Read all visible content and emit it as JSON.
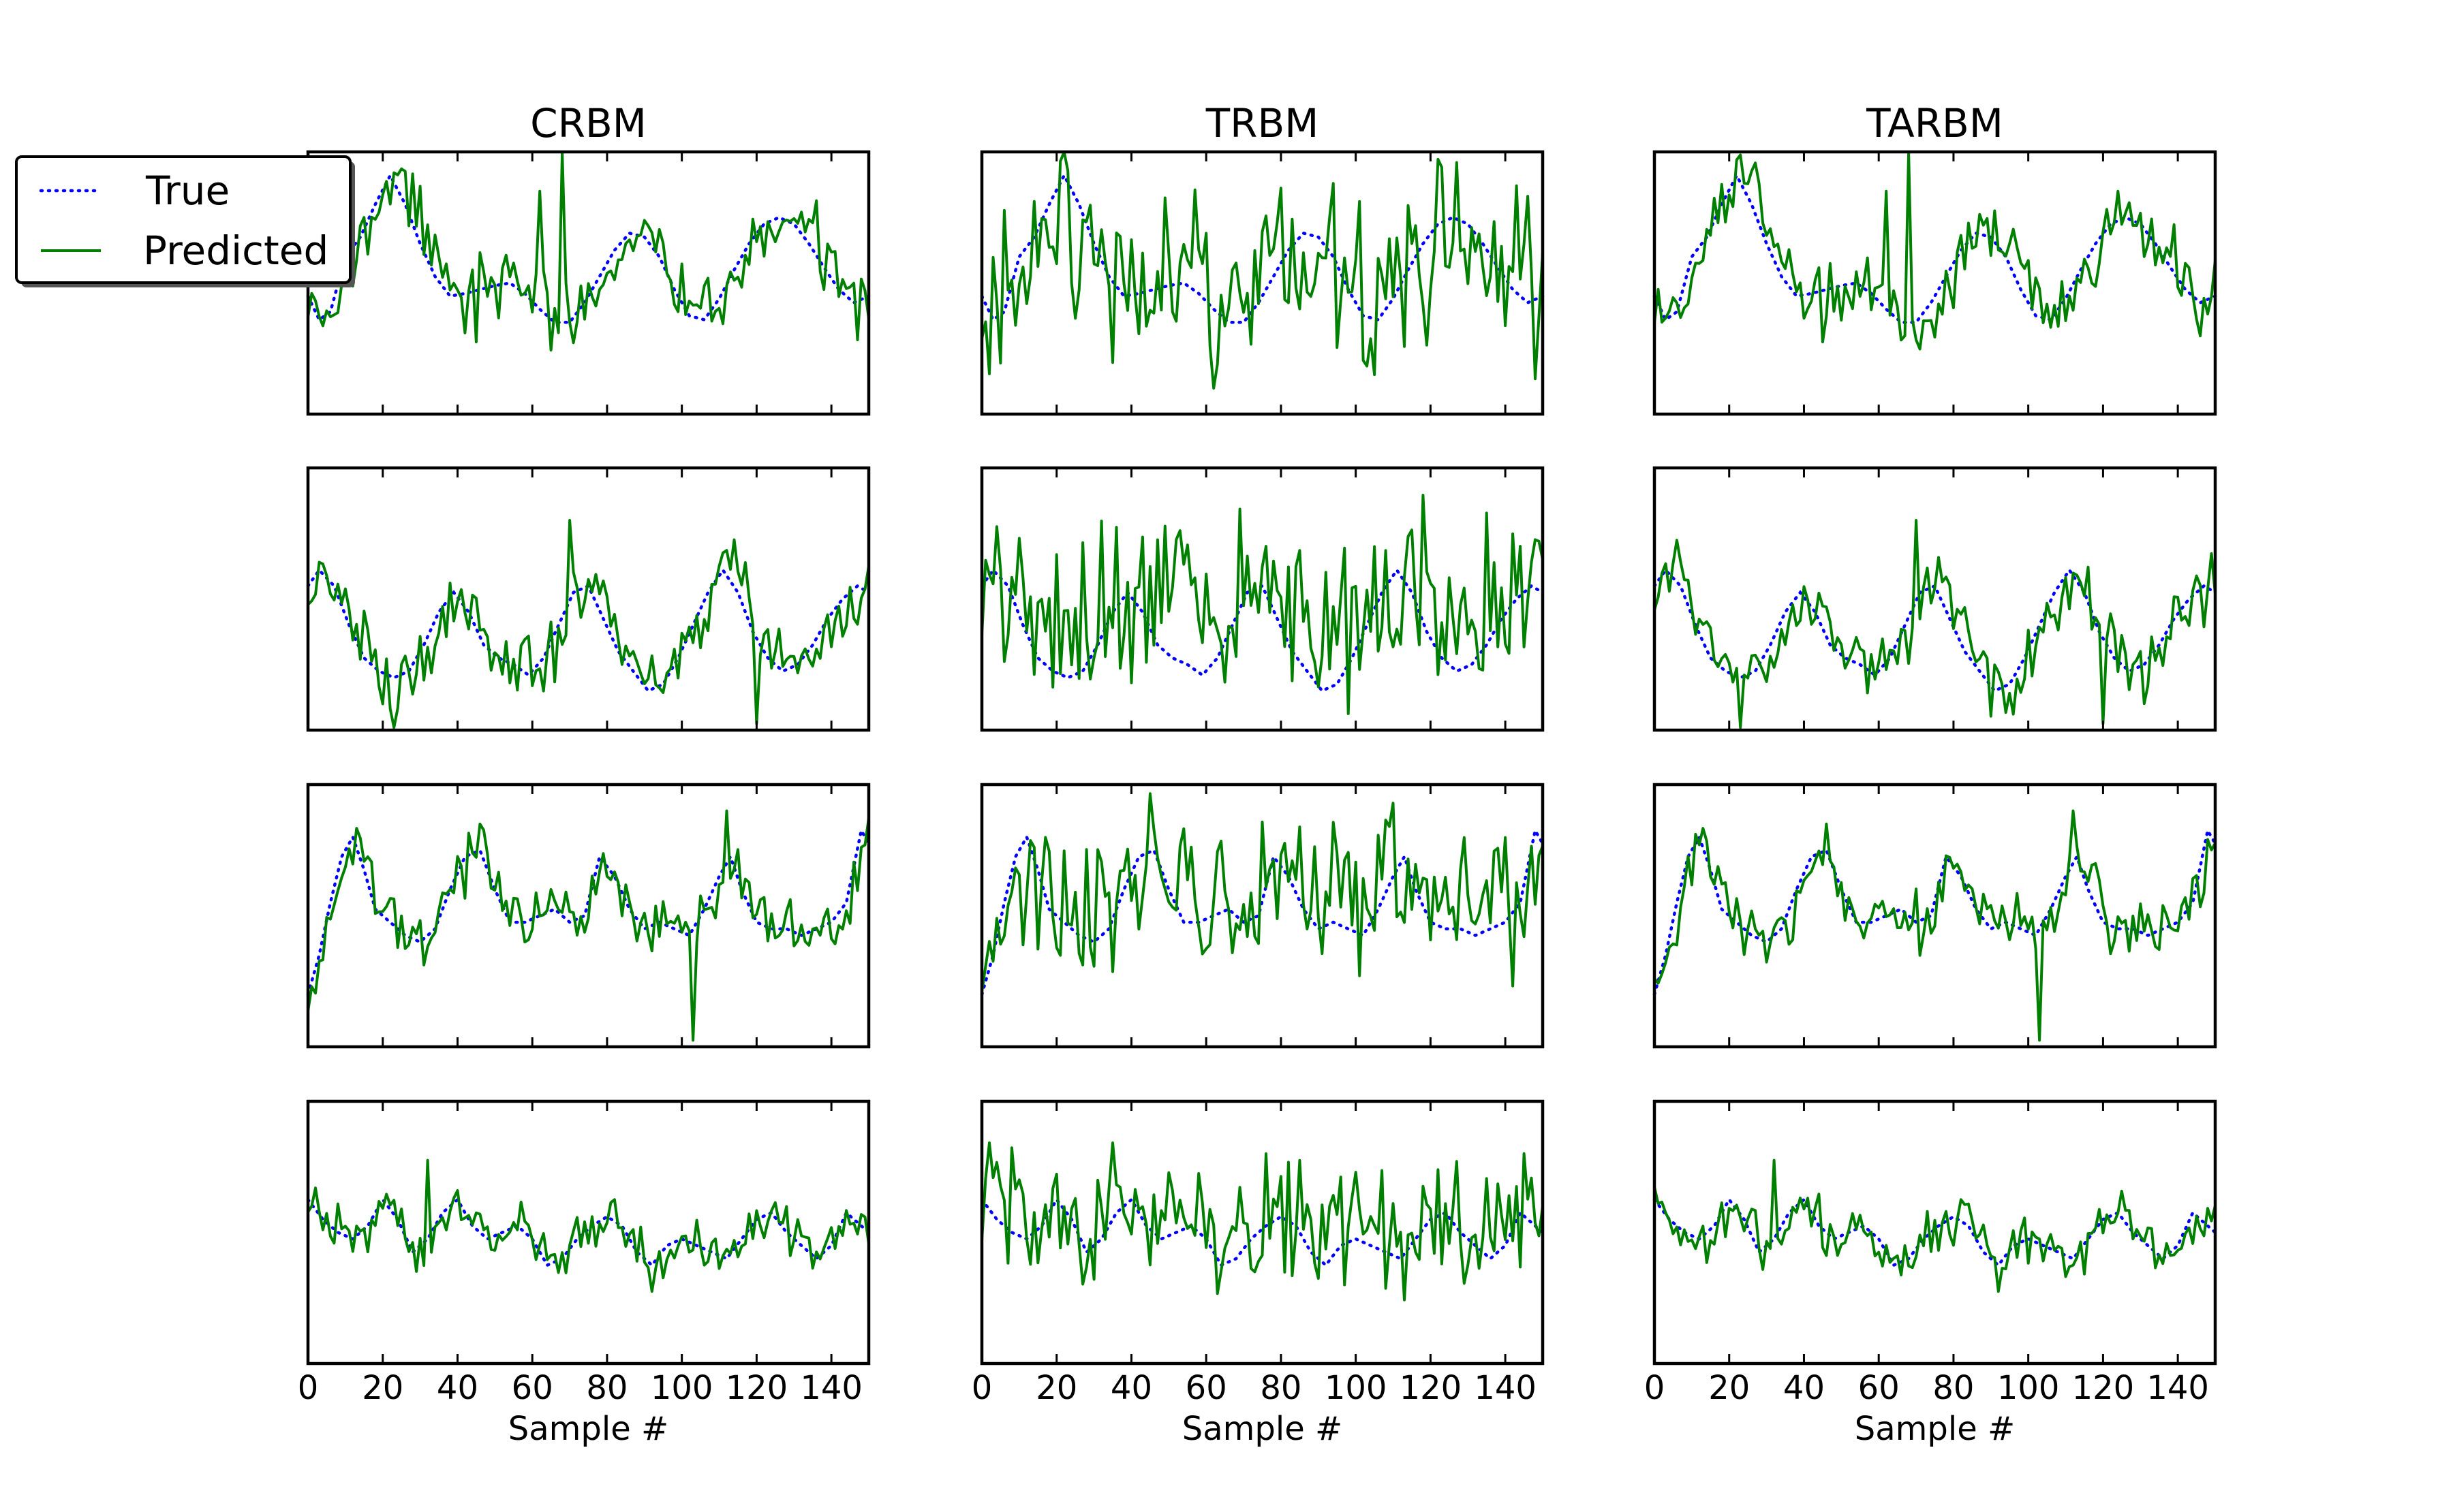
{
  "chart_data": {
    "type": "line",
    "layout": "4 rows x 3 columns of small multiples",
    "columns": [
      "CRBM",
      "TRBM",
      "TARBM"
    ],
    "xlabel": "Sample #",
    "xlim": [
      0,
      150
    ],
    "xticks": [
      0,
      20,
      40,
      60,
      80,
      100,
      120,
      140
    ],
    "ylim": [
      -1,
      1
    ],
    "yticks_shown": false,
    "grid": false,
    "legend": {
      "placement": "top-left",
      "entries": [
        {
          "label": "True",
          "style": "dotted",
          "color": "#0000ff"
        },
        {
          "label": "Predicted",
          "style": "solid",
          "color": "#008000"
        }
      ]
    },
    "series_colors": {
      "True": "#0000ff",
      "Predicted": "#008000"
    },
    "rows": [
      {
        "true": {
          "points": [
            [
              0,
              -0.1
            ],
            [
              3,
              -0.28
            ],
            [
              6,
              -0.22
            ],
            [
              10,
              0.2
            ],
            [
              14,
              0.35
            ],
            [
              18,
              0.6
            ],
            [
              22,
              0.82
            ],
            [
              26,
              0.6
            ],
            [
              30,
              0.3
            ],
            [
              34,
              0.05
            ],
            [
              38,
              -0.1
            ],
            [
              42,
              -0.08
            ],
            [
              46,
              -0.05
            ],
            [
              50,
              -0.02
            ],
            [
              54,
              0.0
            ],
            [
              58,
              -0.08
            ],
            [
              62,
              -0.2
            ],
            [
              66,
              -0.3
            ],
            [
              70,
              -0.3
            ],
            [
              74,
              -0.15
            ],
            [
              78,
              0.05
            ],
            [
              82,
              0.25
            ],
            [
              86,
              0.38
            ],
            [
              90,
              0.35
            ],
            [
              94,
              0.2
            ],
            [
              98,
              -0.05
            ],
            [
              102,
              -0.25
            ],
            [
              106,
              -0.28
            ],
            [
              110,
              -0.12
            ],
            [
              114,
              0.1
            ],
            [
              118,
              0.3
            ],
            [
              122,
              0.45
            ],
            [
              126,
              0.5
            ],
            [
              130,
              0.45
            ],
            [
              134,
              0.3
            ],
            [
              138,
              0.12
            ],
            [
              142,
              -0.05
            ],
            [
              146,
              -0.15
            ],
            [
              150,
              -0.1
            ]
          ]
        },
        "predicted": {
          "seed": 11,
          "noise": 0.26,
          "lag": 2,
          "clip": [
            -1.0,
            1.0
          ],
          "spikes": [
            [
              68,
              1.0
            ],
            [
              62,
              0.7
            ],
            [
              45,
              -0.45
            ]
          ]
        },
        "xlim": [
          0,
          150
        ],
        "ylim": [
          -1,
          1
        ]
      },
      {
        "true": {
          "points": [
            [
              0,
              0.1
            ],
            [
              3,
              0.22
            ],
            [
              7,
              0.1
            ],
            [
              11,
              -0.2
            ],
            [
              15,
              -0.45
            ],
            [
              19,
              -0.55
            ],
            [
              23,
              -0.6
            ],
            [
              27,
              -0.55
            ],
            [
              31,
              -0.35
            ],
            [
              35,
              -0.1
            ],
            [
              39,
              0.05
            ],
            [
              43,
              -0.1
            ],
            [
              47,
              -0.35
            ],
            [
              51,
              -0.45
            ],
            [
              55,
              -0.5
            ],
            [
              59,
              -0.58
            ],
            [
              63,
              -0.45
            ],
            [
              67,
              -0.2
            ],
            [
              71,
              0.05
            ],
            [
              75,
              0.1
            ],
            [
              79,
              -0.15
            ],
            [
              83,
              -0.4
            ],
            [
              87,
              -0.55
            ],
            [
              91,
              -0.7
            ],
            [
              95,
              -0.65
            ],
            [
              99,
              -0.45
            ],
            [
              103,
              -0.2
            ],
            [
              107,
              0.05
            ],
            [
              111,
              0.22
            ],
            [
              115,
              0.05
            ],
            [
              119,
              -0.25
            ],
            [
              123,
              -0.45
            ],
            [
              127,
              -0.55
            ],
            [
              131,
              -0.5
            ],
            [
              135,
              -0.35
            ],
            [
              139,
              -0.15
            ],
            [
              143,
              0.0
            ],
            [
              147,
              0.1
            ],
            [
              150,
              0.05
            ]
          ]
        },
        "predicted": {
          "seed": 22,
          "noise": 0.24,
          "lag": 2,
          "clip": [
            -1.0,
            1.0
          ],
          "spikes": [
            [
              23,
              -0.98
            ],
            [
              120,
              -0.95
            ],
            [
              70,
              0.6
            ]
          ]
        },
        "xlim": [
          0,
          150
        ],
        "ylim": [
          -1,
          1
        ]
      },
      {
        "true": {
          "points": [
            [
              0,
              -0.6
            ],
            [
              3,
              -0.3
            ],
            [
              6,
              0.1
            ],
            [
              9,
              0.45
            ],
            [
              12,
              0.6
            ],
            [
              15,
              0.35
            ],
            [
              18,
              0.05
            ],
            [
              22,
              -0.05
            ],
            [
              26,
              -0.15
            ],
            [
              30,
              -0.2
            ],
            [
              34,
              -0.1
            ],
            [
              38,
              0.2
            ],
            [
              42,
              0.45
            ],
            [
              46,
              0.5
            ],
            [
              50,
              0.2
            ],
            [
              54,
              -0.05
            ],
            [
              58,
              -0.05
            ],
            [
              62,
              0.0
            ],
            [
              66,
              0.05
            ],
            [
              70,
              -0.05
            ],
            [
              74,
              0.0
            ],
            [
              78,
              0.45
            ],
            [
              82,
              0.3
            ],
            [
              86,
              0.05
            ],
            [
              90,
              -0.1
            ],
            [
              94,
              -0.05
            ],
            [
              98,
              -0.1
            ],
            [
              102,
              -0.15
            ],
            [
              106,
              0.05
            ],
            [
              110,
              0.3
            ],
            [
              113,
              0.45
            ],
            [
              116,
              0.2
            ],
            [
              120,
              -0.05
            ],
            [
              124,
              -0.1
            ],
            [
              128,
              -0.1
            ],
            [
              132,
              -0.15
            ],
            [
              136,
              -0.1
            ],
            [
              140,
              -0.05
            ],
            [
              144,
              0.1
            ],
            [
              148,
              0.65
            ],
            [
              150,
              0.55
            ]
          ]
        },
        "predicted": {
          "seed": 33,
          "noise": 0.22,
          "lag": 1,
          "clip": [
            -1.0,
            1.0
          ],
          "spikes": [
            [
              112,
              0.8
            ],
            [
              46,
              0.7
            ],
            [
              103,
              -0.95
            ]
          ]
        },
        "xlim": [
          0,
          150
        ],
        "ylim": [
          -1,
          1
        ]
      },
      {
        "true": {
          "points": [
            [
              0,
              0.25
            ],
            [
              4,
              0.1
            ],
            [
              8,
              0.0
            ],
            [
              12,
              -0.05
            ],
            [
              16,
              0.05
            ],
            [
              20,
              0.25
            ],
            [
              24,
              0.1
            ],
            [
              28,
              -0.15
            ],
            [
              32,
              -0.05
            ],
            [
              36,
              0.15
            ],
            [
              40,
              0.25
            ],
            [
              44,
              0.05
            ],
            [
              48,
              -0.05
            ],
            [
              52,
              0.0
            ],
            [
              56,
              0.05
            ],
            [
              60,
              -0.05
            ],
            [
              64,
              -0.25
            ],
            [
              68,
              -0.2
            ],
            [
              72,
              -0.05
            ],
            [
              76,
              0.05
            ],
            [
              80,
              0.12
            ],
            [
              84,
              0.05
            ],
            [
              88,
              -0.15
            ],
            [
              92,
              -0.25
            ],
            [
              96,
              -0.1
            ],
            [
              100,
              -0.05
            ],
            [
              104,
              -0.1
            ],
            [
              108,
              -0.15
            ],
            [
              112,
              -0.2
            ],
            [
              116,
              -0.05
            ],
            [
              120,
              0.1
            ],
            [
              124,
              0.15
            ],
            [
              128,
              0.0
            ],
            [
              132,
              -0.1
            ],
            [
              136,
              -0.2
            ],
            [
              140,
              -0.1
            ],
            [
              144,
              0.15
            ],
            [
              148,
              0.05
            ],
            [
              150,
              0.0
            ]
          ]
        },
        "predicted": {
          "seed": 44,
          "noise": 0.17,
          "lag": 1,
          "clip": [
            -1.0,
            1.0
          ],
          "spikes": [
            [
              32,
              0.55
            ],
            [
              92,
              -0.45
            ]
          ]
        },
        "xlim": [
          0,
          150
        ],
        "ylim": [
          -1,
          1
        ]
      }
    ],
    "noise_scale_by_column": {
      "CRBM": 1.0,
      "TRBM": 2.6,
      "TARBM": 1.0
    }
  }
}
